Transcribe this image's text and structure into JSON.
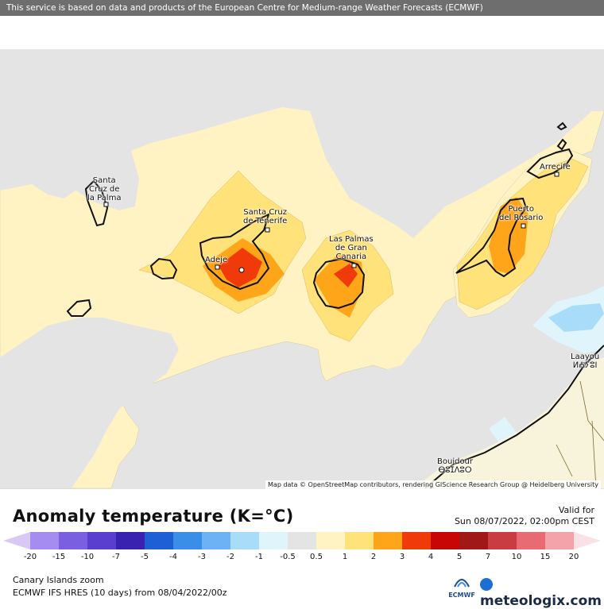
{
  "banner": "This service is based on data and products of the European Centre for Medium-range Weather Forecasts (ECMWF)",
  "map": {
    "cities": [
      {
        "name": "santa-cruz-de-la-palma",
        "label": "Santa\nCruz de\nla Palma"
      },
      {
        "name": "santa-cruz-de-tenerife",
        "label": "Santa Cruz\nde Tenerife"
      },
      {
        "name": "adeje",
        "label": "Adeje"
      },
      {
        "name": "las-palmas",
        "label": "Las Palmas\nde Gran\nCanaria"
      },
      {
        "name": "puerto-del-rosario",
        "label": "Puerto\ndel Rosario"
      },
      {
        "name": "arrecife",
        "label": "Arrecife"
      },
      {
        "name": "laayoune",
        "label": "Laayou\nⵍⵄⵢⵓⵏ"
      },
      {
        "name": "boujdour",
        "label": "Boujdour\nⴱⵓⵊⴷⵓⵔ"
      }
    ],
    "attribution": "Map data © OpenStreetMap contributors, rendering GIScience Research Group @ Heidelberg University"
  },
  "legend": {
    "title": "Anomaly temperature (K=°C)",
    "valid_label": "Valid for",
    "valid_date": "Sun 08/07/2022, 02:00pm CEST",
    "ticks": [
      "-20",
      "-15",
      "-10",
      "-7",
      "-5",
      "-4",
      "-3",
      "-2",
      "-1",
      "-0.5",
      "0.5",
      "1",
      "2",
      "3",
      "4",
      "5",
      "7",
      "10",
      "15",
      "20"
    ],
    "colors": [
      "#a58cf0",
      "#7a60e0",
      "#5a3ed0",
      "#3a22b0",
      "#1f5fd6",
      "#3a8ee8",
      "#6cb2f4",
      "#a8dcf8",
      "#e0f4fb",
      "#e4e4e4",
      "#fff3c4",
      "#ffe27a",
      "#ffa51a",
      "#f03a0a",
      "#c80606",
      "#a01818",
      "#c83c42",
      "#e86a72",
      "#f5a3aa"
    ],
    "end_left_color": "#d8c8f6",
    "end_right_color": "#fbe0e6",
    "zoom": "Canary Islands zoom",
    "model": "ECMWF IFS HRES (10 days) from 08/04/2022/00z",
    "ecmwf_logo": "ECMWF",
    "brand": "meteologix.com"
  }
}
